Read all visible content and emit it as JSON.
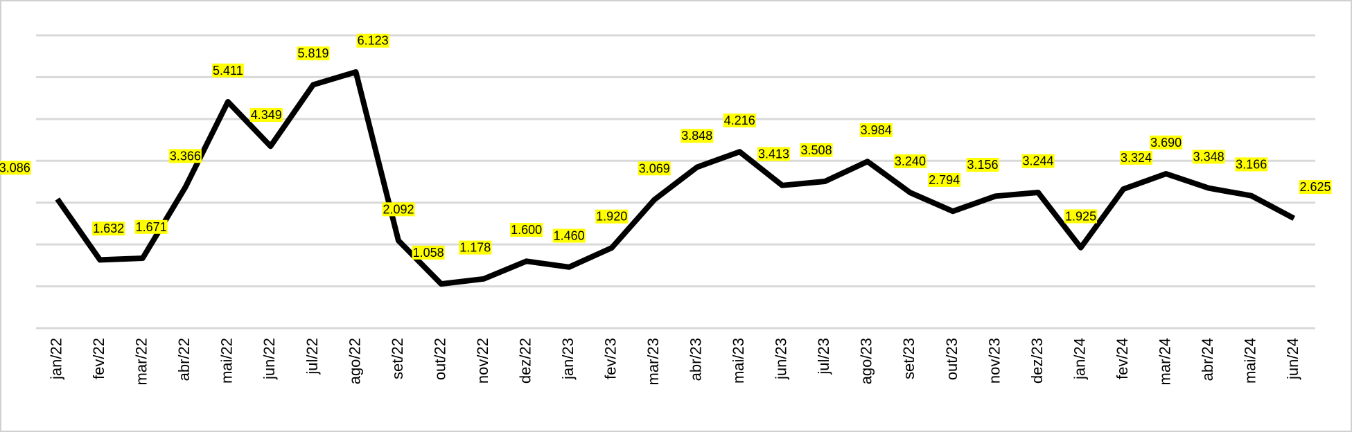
{
  "chart_data": {
    "type": "line",
    "categories": [
      "jan/22",
      "fev/22",
      "mar/22",
      "abr/22",
      "mai/22",
      "jun/22",
      "jul/22",
      "ago/22",
      "set/22",
      "out/22",
      "nov/22",
      "dez/22",
      "jan/23",
      "fev/23",
      "mar/23",
      "abr/23",
      "mai/23",
      "jun/23",
      "jul/23",
      "ago/23",
      "set/23",
      "out/23",
      "nov/23",
      "dez/23",
      "jan/24",
      "fev/24",
      "mar/24",
      "abr/24",
      "mai/24",
      "jun/24"
    ],
    "values": [
      3.086,
      1.632,
      1.671,
      3.366,
      5.411,
      4.349,
      5.819,
      6.123,
      2.092,
      1.058,
      1.178,
      1.6,
      1.46,
      1.92,
      3.069,
      3.848,
      4.216,
      3.413,
      3.508,
      3.984,
      3.24,
      2.794,
      3.156,
      3.244,
      1.925,
      3.324,
      3.69,
      3.348,
      3.166,
      2.625
    ],
    "value_labels": [
      "3.086",
      "1.632",
      "1.671",
      "3.366",
      "5.411",
      "4.349",
      "5.819",
      "6.123",
      "2.092",
      "1.058",
      "1.178",
      "1.600",
      "1.460",
      "1.920",
      "3.069",
      "3.848",
      "4.216",
      "3.413",
      "3.508",
      "3.984",
      "3.240",
      "2.794",
      "3.156",
      "3.244",
      "1.925",
      "3.324",
      "3.690",
      "3.348",
      "3.166",
      "2.625"
    ],
    "color": "#000000",
    "label_background": "#ffff00",
    "ylim": [
      0,
      7
    ],
    "yticks": [
      0,
      1,
      2,
      3,
      4,
      5,
      6,
      7
    ],
    "grid": true
  }
}
